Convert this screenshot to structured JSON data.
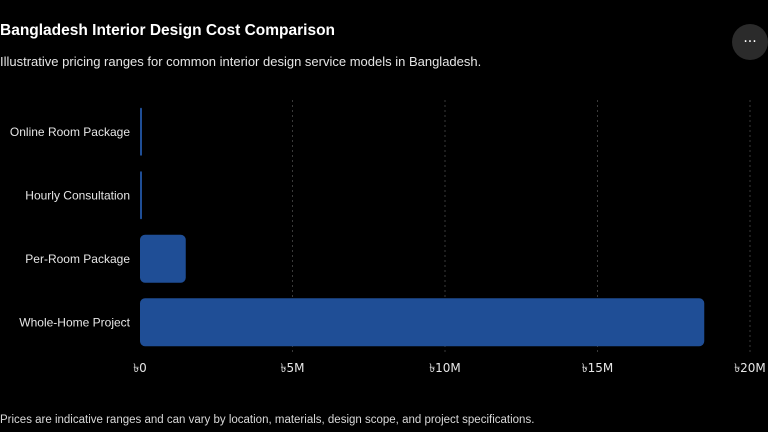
{
  "header": {
    "title": "Bangladesh Interior Design Cost Comparison",
    "subtitle": "Illustrative pricing ranges for common interior design service models in Bangladesh."
  },
  "toolbar": {
    "more_label": "···",
    "more_icon": "more-horizontal-icon"
  },
  "chart_data": {
    "type": "bar",
    "orientation": "horizontal",
    "categories": [
      "Online Room Package",
      "Hourly Consultation",
      "Per-Room Package",
      "Whole-Home Project"
    ],
    "values": [
      50000,
      30000,
      1500000,
      18500000
    ],
    "xlim": [
      0,
      20000000
    ],
    "x_ticks": [
      0,
      5000000,
      10000000,
      15000000,
      20000000
    ],
    "x_tick_labels": [
      "৳0",
      "৳5M",
      "৳10M",
      "৳15M",
      "৳20M"
    ],
    "grid": "vertical dashed",
    "bar_color": "#1f4e96",
    "grid_color": "#3a3a3a"
  },
  "footer": {
    "note": "Prices are indicative ranges and can vary by location, materials, design scope, and project specifications."
  }
}
